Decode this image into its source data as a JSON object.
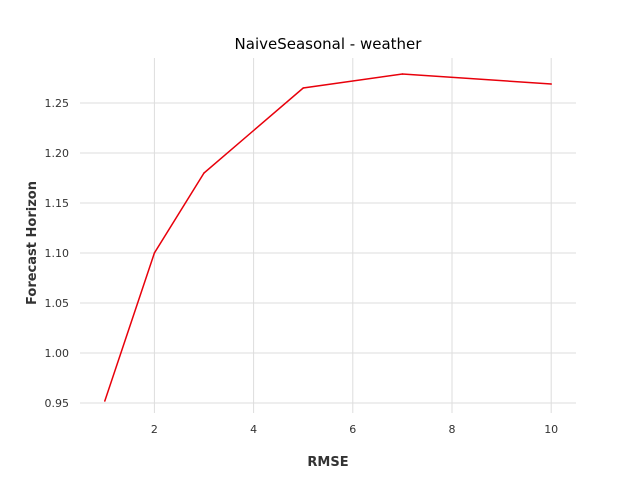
{
  "chart_data": {
    "type": "line",
    "title": "NaiveSeasonal - weather",
    "xlabel": "RMSE",
    "ylabel": "Forecast Horizon",
    "xlim": [
      0.5,
      10.5
    ],
    "ylim": [
      0.94,
      1.295
    ],
    "xticks": [
      2,
      4,
      6,
      8,
      10
    ],
    "yticks": [
      0.95,
      1.0,
      1.05,
      1.1,
      1.15,
      1.2,
      1.25
    ],
    "ytick_labels": [
      "0.95",
      "1.00",
      "1.05",
      "1.10",
      "1.15",
      "1.20",
      "1.25"
    ],
    "grid": true,
    "series": [
      {
        "color": "#e8000b",
        "x": [
          1,
          2,
          3,
          5,
          7,
          10
        ],
        "y": [
          0.952,
          1.1,
          1.18,
          1.265,
          1.279,
          1.269
        ]
      }
    ]
  }
}
